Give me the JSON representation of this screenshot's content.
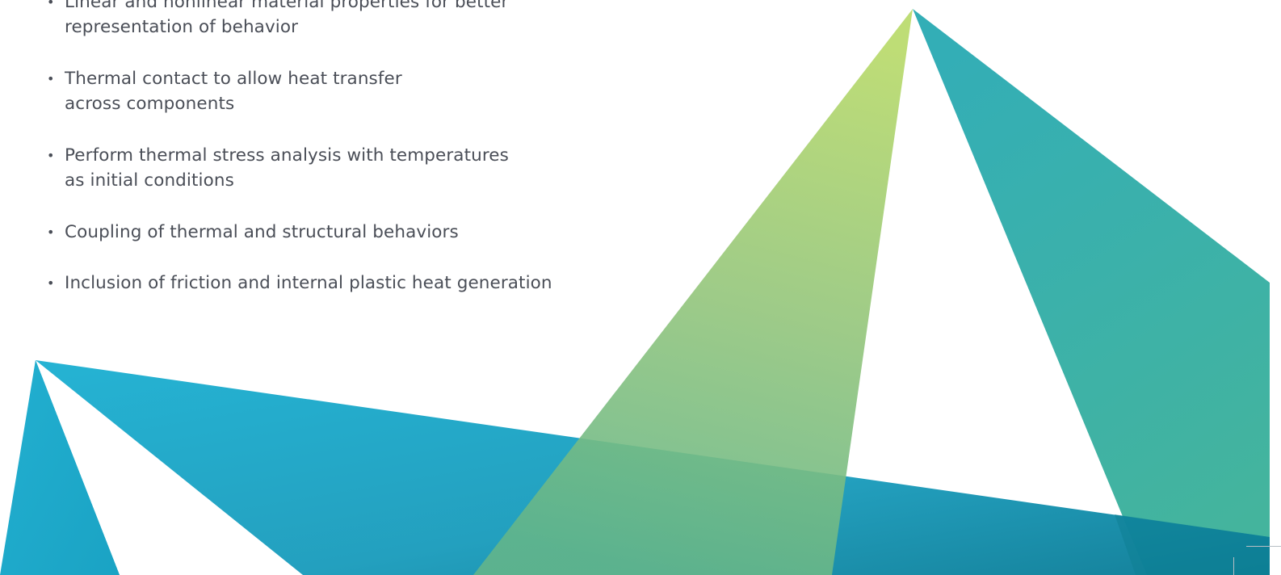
{
  "bullets": [
    "Linear and nonlinear material properties for better\nrepresentation of behavior",
    "Thermal contact to allow heat transfer\nacross components",
    "Perform thermal stress analysis with temperatures\nas initial conditions",
    "Coupling of thermal and structural behaviors",
    "Inclusion of friction and internal plastic heat generation"
  ],
  "colors": {
    "text": "#4a4e57",
    "cyan": "#1ba8c9",
    "deep_teal": "#0b7f98",
    "teal": "#37adb1",
    "lime": "#b5d766",
    "green": "#6db883"
  }
}
